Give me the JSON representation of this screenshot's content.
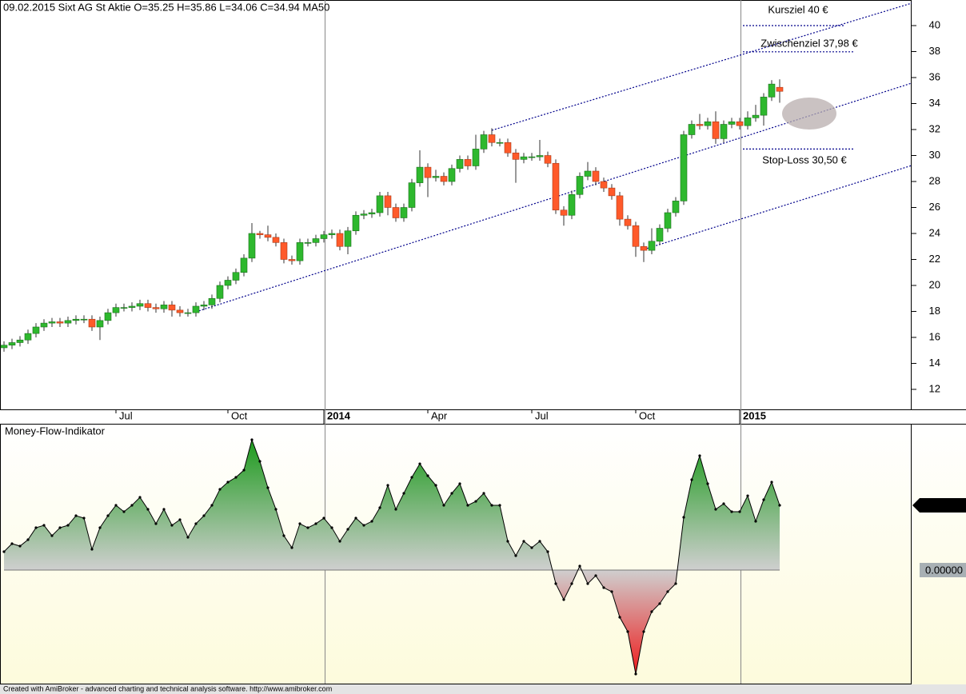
{
  "chart_data": [
    {
      "type": "candlestick",
      "title": "09.02.2015 Sixt AG St Aktie  O=35.25  H=35.86  L=34.06  C=34.94    MA50",
      "open": [
        15.2,
        15.4,
        15.6,
        15.8,
        16.3,
        16.8,
        17.1,
        17.2,
        17.1,
        17.3,
        17.4,
        17.4,
        16.8,
        17.3,
        17.9,
        18.3,
        18.3,
        18.4,
        18.6,
        18.3,
        18.2,
        18.5,
        18.1,
        17.9,
        17.9,
        18.4,
        18.5,
        19.0,
        20.0,
        20.4,
        21.0,
        22.1,
        24.0,
        23.9,
        23.7,
        23.3,
        22.0,
        21.9,
        23.3,
        23.3,
        23.6,
        23.9,
        24.0,
        23.0,
        24.2,
        25.4,
        25.5,
        25.6,
        26.9,
        26.0,
        25.2,
        26.0,
        27.9,
        29.1,
        28.3,
        28.4,
        28.0,
        29.0,
        29.7,
        29.2,
        30.5,
        31.6,
        31.0,
        31.0,
        30.2,
        29.7,
        29.9,
        29.9,
        30.0,
        29.4,
        25.8,
        25.4,
        27.0,
        28.4,
        28.8,
        28.0,
        27.5,
        26.9,
        25.1,
        24.6,
        23.0,
        22.7,
        23.4,
        24.4,
        25.6,
        26.5,
        31.6,
        32.4,
        32.3,
        32.6,
        31.3,
        32.4,
        32.6,
        32.3,
        32.9,
        33.1,
        34.5,
        35.25
      ],
      "high": [
        15.7,
        15.9,
        16.1,
        16.6,
        17.1,
        17.4,
        17.5,
        17.5,
        17.6,
        17.7,
        17.7,
        17.7,
        17.6,
        18.2,
        18.6,
        18.6,
        18.7,
        18.9,
        18.9,
        18.6,
        18.8,
        18.8,
        18.4,
        18.2,
        18.7,
        18.8,
        19.3,
        20.3,
        20.7,
        21.3,
        22.4,
        24.8,
        24.2,
        24.6,
        24.0,
        23.6,
        22.3,
        23.6,
        23.6,
        23.9,
        24.2,
        24.3,
        24.3,
        24.5,
        25.7,
        25.8,
        25.9,
        27.2,
        27.2,
        26.3,
        26.3,
        28.2,
        30.4,
        29.4,
        28.9,
        28.7,
        29.3,
        30.0,
        30.0,
        31.6,
        31.9,
        32.1,
        31.3,
        31.3,
        30.5,
        30.2,
        30.2,
        31.2,
        30.3,
        29.7,
        26.1,
        27.3,
        28.7,
        29.5,
        29.1,
        28.3,
        27.8,
        27.2,
        25.4,
        24.9,
        23.3,
        24.4,
        24.7,
        25.9,
        26.8,
        31.9,
        32.7,
        33.2,
        32.9,
        33.4,
        32.7,
        32.9,
        32.9,
        33.4,
        33.9,
        34.8,
        35.8,
        35.86
      ],
      "low": [
        14.9,
        15.1,
        15.3,
        15.5,
        16.0,
        16.5,
        16.8,
        16.8,
        16.8,
        17.0,
        17.1,
        16.5,
        15.8,
        17.0,
        17.6,
        18.0,
        18.0,
        18.1,
        18.0,
        17.9,
        17.9,
        17.6,
        17.6,
        17.6,
        17.6,
        18.1,
        18.2,
        18.7,
        19.7,
        20.1,
        20.7,
        21.8,
        23.6,
        23.4,
        23.0,
        21.7,
        21.6,
        21.6,
        23.0,
        23.0,
        23.3,
        23.6,
        22.7,
        22.4,
        23.9,
        25.1,
        25.2,
        25.3,
        25.4,
        24.9,
        24.9,
        25.7,
        27.6,
        26.8,
        28.0,
        27.7,
        27.7,
        28.7,
        28.9,
        28.9,
        30.2,
        30.7,
        30.7,
        29.9,
        27.9,
        29.4,
        29.6,
        29.6,
        29.1,
        25.5,
        24.6,
        25.1,
        26.7,
        28.1,
        27.7,
        27.2,
        26.6,
        24.6,
        24.3,
        22.2,
        21.8,
        22.4,
        23.1,
        24.1,
        25.3,
        26.2,
        31.3,
        32.0,
        32.0,
        30.9,
        31.0,
        32.1,
        32.0,
        32.0,
        32.6,
        32.3,
        34.2,
        34.06
      ],
      "close": [
        15.4,
        15.6,
        15.8,
        16.3,
        16.8,
        17.1,
        17.2,
        17.1,
        17.3,
        17.4,
        17.4,
        16.8,
        17.3,
        17.9,
        18.3,
        18.3,
        18.4,
        18.6,
        18.3,
        18.2,
        18.5,
        18.1,
        17.9,
        17.9,
        18.4,
        18.5,
        19.0,
        20.0,
        20.4,
        21.0,
        22.1,
        24.0,
        23.9,
        23.7,
        23.3,
        22.0,
        21.9,
        23.3,
        23.3,
        23.6,
        23.9,
        24.0,
        23.0,
        24.2,
        25.4,
        25.5,
        25.6,
        26.9,
        26.0,
        25.2,
        26.0,
        27.9,
        29.1,
        28.3,
        28.4,
        28.0,
        29.0,
        29.7,
        29.2,
        30.5,
        31.6,
        31.0,
        31.0,
        30.2,
        29.7,
        29.9,
        29.9,
        30.0,
        29.4,
        25.8,
        25.4,
        27.0,
        28.4,
        28.8,
        28.0,
        27.5,
        26.9,
        25.1,
        24.6,
        23.0,
        22.7,
        23.4,
        24.4,
        25.6,
        26.5,
        31.6,
        32.4,
        32.3,
        32.6,
        31.3,
        32.4,
        32.6,
        32.3,
        32.9,
        33.1,
        34.5,
        35.5,
        34.94
      ],
      "up_color": "#2eb82e",
      "down_color": "#ff5a2a",
      "ylim": [
        10.46,
        41.97
      ],
      "yticks": [
        12,
        14,
        16,
        18,
        20,
        22,
        24,
        26,
        28,
        30,
        32,
        34,
        36,
        38,
        40
      ],
      "xticks": [
        {
          "value": 14,
          "label": "Jul"
        },
        {
          "value": 28,
          "label": "Oct"
        },
        {
          "value": 40,
          "label": "2014"
        },
        {
          "value": 53,
          "label": "Apr"
        },
        {
          "value": 66,
          "label": "Jul"
        },
        {
          "value": 79,
          "label": "Oct"
        },
        {
          "value": 92,
          "label": "2015"
        }
      ],
      "annotations": [
        {
          "text": "Kursziel 40 €",
          "value": 40
        },
        {
          "text": "Zwischenziel 37,98 €",
          "value": 37.98
        },
        {
          "text": "Stop-Loss 30,50 €",
          "value": 30.5
        }
      ]
    },
    {
      "type": "area",
      "title": "Money-Flow-Indikator",
      "values": [
        358,
        514,
        467,
        592,
        825,
        872,
        670,
        825,
        872,
        1059,
        1012,
        405,
        825,
        1059,
        1262,
        1137,
        1262,
        1417,
        1184,
        903,
        1184,
        872,
        981,
        639,
        903,
        1059,
        1262,
        1573,
        1713,
        1807,
        1947,
        2539,
        2118,
        1604,
        1184,
        670,
        436,
        903,
        825,
        903,
        1012,
        825,
        561,
        794,
        1012,
        872,
        950,
        1215,
        1651,
        1184,
        1495,
        1807,
        2071,
        1838,
        1651,
        1262,
        1495,
        1682,
        1262,
        1339,
        1495,
        1262,
        1262,
        561,
        280,
        561,
        436,
        561,
        358,
        -265,
        -576,
        -265,
        78,
        -265,
        -109,
        -343,
        -421,
        -919,
        -1199,
        -2025,
        -1199,
        -810,
        -654,
        -421,
        -265,
        1028,
        1760,
        2227,
        1682,
        1184,
        1293,
        1137,
        1137,
        1448,
        950,
        1371,
        1713,
        1261.59
      ],
      "ylim": [
        -2212,
        2835
      ],
      "yticks": [
        1261.59,
        {
          "value": 0,
          "label": "0.00000"
        }
      ]
    }
  ],
  "footer": "Created with AmiBroker - advanced charting and technical analysis software. http://www.amibroker.com"
}
